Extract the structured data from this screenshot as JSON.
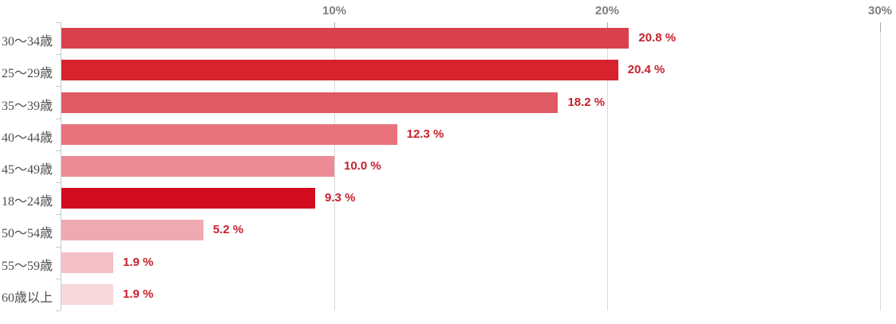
{
  "chart_data": {
    "type": "bar",
    "orientation": "horizontal",
    "title": "",
    "xlabel": "",
    "ylabel": "",
    "categories": [
      "30〜34歳",
      "25〜29歳",
      "35〜39歳",
      "40〜44歳",
      "45〜49歳",
      "18〜24歳",
      "50〜54歳",
      "55〜59歳",
      "60歳以上"
    ],
    "values": [
      20.8,
      20.4,
      18.2,
      12.3,
      10.0,
      9.3,
      5.2,
      1.9,
      1.9
    ],
    "value_labels": [
      "20.8 %",
      "20.4 %",
      "18.2 %",
      "12.3 %",
      "10.0 %",
      "9.3 %",
      "5.2 %",
      "1.9 %",
      "1.9 %"
    ],
    "bar_colors": [
      "#d9414e",
      "#d7232e",
      "#e05a64",
      "#e8737d",
      "#ec8b95",
      "#d30b1e",
      "#efa9b1",
      "#f3c0c6",
      "#f8d8dd"
    ],
    "axis": {
      "tick_labels": [
        "10%",
        "20%",
        "30%"
      ],
      "tick_values": [
        10,
        20,
        30
      ],
      "xlim": [
        0,
        30
      ],
      "ticks_position": "top"
    },
    "grid": true,
    "legend": false
  },
  "colors": {
    "value_label": "#c7222e",
    "axis_tick_label": "#7f7f7f",
    "category_label": "#4d4d4d",
    "gridline": "#d9d9d9",
    "grid_top_tick": "#a6a6a6",
    "category_axis": "#c4ccd2",
    "background": "#ffffff"
  }
}
